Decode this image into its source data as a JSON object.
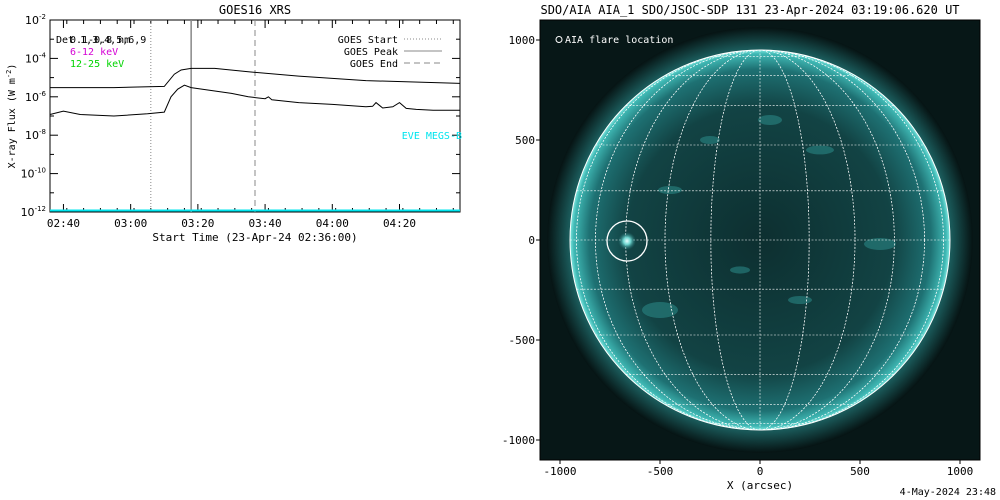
{
  "goes": {
    "title": "GOES16 XRS",
    "ylabel": "X-ray Flux (W m",
    "ylabel_sup": "-2",
    "ylabel_end": ")",
    "xlabel": "Start Time (23-Apr-24 02:36:00)",
    "legend_left": [
      {
        "text": "0.1-0.8 nm",
        "color": "#000000"
      },
      {
        "text": "6-12 keV",
        "color": "#d400d4"
      },
      {
        "text": "12-25 keV",
        "color": "#00d400"
      }
    ],
    "legend_overlap": "Det 1,3,4,5,6,9",
    "legend_right": [
      {
        "text": "GOES Start",
        "style": "dotted"
      },
      {
        "text": "GOES Peak",
        "style": "solid"
      },
      {
        "text": "GOES End",
        "style": "dashed"
      }
    ],
    "eve_label": "EVE MEGS-B",
    "eve_color": "#00e5ee"
  },
  "chart_data": [
    {
      "type": "line",
      "title": "GOES16 XRS",
      "xlabel": "Start Time (23-Apr-24 02:36:00)",
      "ylabel": "X-ray Flux (W m^-2)",
      "yscale": "log",
      "ylim": [
        1e-12,
        0.01
      ],
      "xlim_minutes": [
        156,
        278
      ],
      "x_tick_minutes": [
        160,
        180,
        200,
        220,
        240,
        260
      ],
      "x_tick_labels": [
        "02:40",
        "03:00",
        "03:20",
        "03:40",
        "04:00",
        "04:20"
      ],
      "y_tick_exponents": [
        -12,
        -10,
        -8,
        -6,
        -4,
        -2
      ],
      "y_tick_base": "10",
      "markers_minutes": {
        "goes_start": 186,
        "goes_peak": 198,
        "goes_end": 217
      },
      "series": [
        {
          "name": "0.1-0.8 nm",
          "color": "#000000",
          "x": [
            156,
            175,
            190,
            193,
            195,
            198,
            205,
            215,
            230,
            250,
            278
          ],
          "y": [
            3e-06,
            3e-06,
            3.5e-06,
            1.5e-05,
            2.5e-05,
            3e-05,
            3e-05,
            2e-05,
            1.2e-05,
            7e-06,
            5e-06
          ]
        },
        {
          "name": "",
          "color": "#000000",
          "x": [
            156,
            160,
            165,
            175,
            185,
            190,
            192,
            194,
            196,
            198,
            210,
            215,
            220,
            221,
            222,
            230,
            240,
            250,
            252,
            253,
            255,
            258,
            260,
            262,
            265,
            270,
            278
          ],
          "y": [
            1.2e-07,
            1.8e-07,
            1.2e-07,
            1e-07,
            1.3e-07,
            1.6e-07,
            1e-06,
            2.5e-06,
            4e-06,
            3e-06,
            1.5e-06,
            1e-06,
            8e-07,
            1e-06,
            7e-07,
            5e-07,
            4e-07,
            3e-07,
            3.2e-07,
            5e-07,
            2.6e-07,
            3e-07,
            5e-07,
            2.5e-07,
            2.2e-07,
            2e-07,
            2e-07
          ]
        },
        {
          "name": "EVE MEGS-B",
          "color": "#00e5ee",
          "x": [
            156,
            278
          ],
          "y": [
            1.2e-12,
            1.2e-12
          ]
        }
      ]
    },
    {
      "type": "image",
      "title": "SDO/AIA AIA_1 SDO/JSOC-SDP 131 23-Apr-2024 03:19:06.620 UT",
      "xlabel": "X (arcsec)",
      "xlim": [
        -1100,
        1100
      ],
      "ylim": [
        -1100,
        1100
      ],
      "x_ticks": [
        -1000,
        -500,
        0,
        500,
        1000
      ],
      "y_ticks": [
        -1000,
        -500,
        0,
        500,
        1000
      ],
      "solar_radius_arcsec": 950,
      "flare_location_arcsec": [
        -665,
        -5
      ],
      "legend": "AIA flare location"
    }
  ],
  "aia": {
    "title": "SDO/AIA AIA_1 SDO/JSOC-SDP 131 23-Apr-2024 03:19:06.620 UT",
    "xlabel": "X (arcsec)",
    "legend": "AIA flare location"
  },
  "footer": {
    "timestamp": "4-May-2024 23:48"
  }
}
